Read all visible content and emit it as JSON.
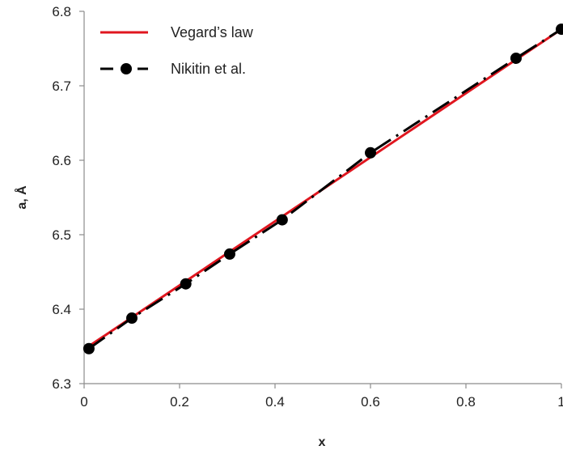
{
  "chart_data": {
    "type": "line",
    "xlabel": "x",
    "ylabel": "a, Å",
    "xlim": [
      0,
      1
    ],
    "ylim": [
      6.3,
      6.8
    ],
    "x_ticks": [
      "0",
      "0.2",
      "0.4",
      "0.6",
      "0.8",
      "1"
    ],
    "y_ticks": [
      "6.3",
      "6.4",
      "6.5",
      "6.6",
      "6.7",
      "6.8"
    ],
    "grid": false,
    "legend_position": "top-left",
    "series": [
      {
        "name": "Vegard’s law",
        "style": "solid",
        "color": "#e0161f",
        "x": [
          0,
          1
        ],
        "y": [
          6.346,
          6.776
        ]
      },
      {
        "name": "Nikitin et al.",
        "style": "dash-dot",
        "color": "#000000",
        "marker": "circle",
        "x": [
          0.01,
          0.1,
          0.213,
          0.305,
          0.415,
          0.6,
          0.905,
          1.0
        ],
        "y": [
          6.347,
          6.388,
          6.434,
          6.474,
          6.52,
          6.61,
          6.737,
          6.776
        ]
      }
    ]
  }
}
